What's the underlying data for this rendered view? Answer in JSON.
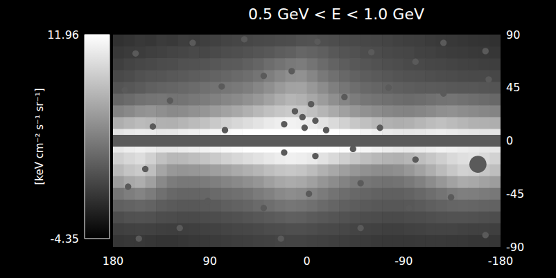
{
  "chart_data": {
    "type": "heatmap",
    "title": "0.5 GeV < E < 1.0 GeV",
    "x": [
      175,
      165,
      155,
      145,
      135,
      125,
      115,
      105,
      95,
      85,
      75,
      65,
      55,
      45,
      35,
      25,
      15,
      5,
      -5,
      -15,
      -25,
      -35,
      -45,
      -55,
      -65,
      -75,
      -85,
      -95,
      -105,
      -115,
      -125,
      -135,
      -145,
      -155,
      -165,
      -175
    ],
    "y": [
      85,
      75,
      65,
      55,
      45,
      35,
      25,
      15,
      5,
      -5,
      -15,
      -25,
      -35,
      -45,
      -55,
      -65,
      -75,
      -85
    ],
    "values": [
      [
        -1.2,
        -1.0,
        -0.8,
        -0.9,
        -0.6,
        -0.7,
        -0.4,
        -0.5,
        -0.3,
        -0.2,
        0.0,
        0.1,
        0.2,
        0.3,
        0.4,
        0.5,
        0.6,
        0.8,
        0.9,
        0.7,
        0.6,
        0.4,
        0.3,
        0.2,
        0.1,
        0.0,
        -0.2,
        -0.3,
        -0.4,
        -0.6,
        -0.7,
        -0.8,
        -0.9,
        -1.0,
        -1.1,
        -1.2
      ],
      [
        -0.8,
        -0.6,
        -0.5,
        -0.3,
        -0.2,
        0.0,
        0.1,
        0.3,
        0.2,
        0.4,
        0.6,
        0.7,
        0.9,
        1.1,
        1.3,
        1.6,
        1.8,
        2.2,
        2.0,
        1.7,
        1.3,
        1.0,
        0.8,
        0.6,
        0.5,
        0.3,
        0.2,
        0.1,
        -0.1,
        -0.2,
        -0.4,
        -0.5,
        -0.6,
        -0.7,
        -0.8,
        -0.9
      ],
      [
        -0.3,
        0.0,
        0.2,
        0.3,
        0.5,
        0.6,
        0.8,
        0.9,
        1.0,
        1.2,
        1.4,
        1.5,
        1.8,
        2.1,
        2.6,
        3.0,
        3.4,
        3.6,
        3.1,
        2.5,
        2.0,
        1.6,
        1.3,
        1.1,
        0.9,
        0.7,
        0.6,
        0.4,
        0.3,
        0.2,
        0.1,
        0.0,
        -0.1,
        -0.2,
        -0.3,
        -0.4
      ],
      [
        0.3,
        0.5,
        0.8,
        1.0,
        1.1,
        1.3,
        1.4,
        1.6,
        1.8,
        2.0,
        2.2,
        2.4,
        2.7,
        3.1,
        3.7,
        4.3,
        4.8,
        4.9,
        4.2,
        3.4,
        2.8,
        2.3,
        1.9,
        1.6,
        1.4,
        1.2,
        1.0,
        0.9,
        0.8,
        0.7,
        0.6,
        0.5,
        0.4,
        0.3,
        0.3,
        0.2
      ],
      [
        1.0,
        1.2,
        1.5,
        1.8,
        2.0,
        2.1,
        2.3,
        2.5,
        2.8,
        3.0,
        3.2,
        3.4,
        3.7,
        4.2,
        4.8,
        5.5,
        6.0,
        6.1,
        5.4,
        4.6,
        3.8,
        3.2,
        2.7,
        2.3,
        2.1,
        1.9,
        1.7,
        1.6,
        1.5,
        1.5,
        1.4,
        1.3,
        1.2,
        1.2,
        1.1,
        1.0
      ],
      [
        2.2,
        2.5,
        2.9,
        3.1,
        3.2,
        3.0,
        3.1,
        3.3,
        3.6,
        3.9,
        4.2,
        4.5,
        4.9,
        5.4,
        6.0,
        6.7,
        7.2,
        7.0,
        6.3,
        5.6,
        4.8,
        4.2,
        3.6,
        3.2,
        3.0,
        2.8,
        2.6,
        2.5,
        2.6,
        2.8,
        3.0,
        3.1,
        2.9,
        2.7,
        2.5,
        2.3
      ],
      [
        4.0,
        4.4,
        4.9,
        5.1,
        4.8,
        4.5,
        4.6,
        4.9,
        5.2,
        5.6,
        6.0,
        6.4,
        6.9,
        7.4,
        7.9,
        8.3,
        8.6,
        8.4,
        7.9,
        7.2,
        6.5,
        5.9,
        5.3,
        4.9,
        4.6,
        4.3,
        4.1,
        4.0,
        4.2,
        4.5,
        4.8,
        4.9,
        4.7,
        4.5,
        4.3,
        4.1
      ],
      [
        6.8,
        7.2,
        7.6,
        7.4,
        7.0,
        6.9,
        7.2,
        7.6,
        8.0,
        8.5,
        9.0,
        9.4,
        9.8,
        10.2,
        10.6,
        10.9,
        11.1,
        11.0,
        10.7,
        10.2,
        9.6,
        9.0,
        8.4,
        7.9,
        7.4,
        7.0,
        6.8,
        6.9,
        7.3,
        7.7,
        7.9,
        7.6,
        7.3,
        7.0,
        6.9,
        6.8
      ],
      [
        10.2,
        10.5,
        10.7,
        10.6,
        10.4,
        10.5,
        10.8,
        11.0,
        11.2,
        11.4,
        11.6,
        11.8,
        11.9,
        11.9,
        11.9,
        11.9,
        11.9,
        11.9,
        11.9,
        11.9,
        11.9,
        11.8,
        11.6,
        11.3,
        11.0,
        10.7,
        10.5,
        10.4,
        10.5,
        10.7,
        10.8,
        10.6,
        10.4,
        10.3,
        10.2,
        10.2
      ],
      [
        10.4,
        10.8,
        11.0,
        10.8,
        10.5,
        10.5,
        10.7,
        10.9,
        11.1,
        11.3,
        11.5,
        11.7,
        11.9,
        11.9,
        11.9,
        11.9,
        11.9,
        11.9,
        11.9,
        11.9,
        11.9,
        11.8,
        11.6,
        11.4,
        11.1,
        10.8,
        10.6,
        10.5,
        10.7,
        10.9,
        11.1,
        11.0,
        10.8,
        10.6,
        10.5,
        10.4
      ],
      [
        8.9,
        9.4,
        9.8,
        9.0,
        8.0,
        7.4,
        7.5,
        7.8,
        8.2,
        8.6,
        9.0,
        9.4,
        9.8,
        10.1,
        10.5,
        10.8,
        11.0,
        10.9,
        10.6,
        10.1,
        9.5,
        8.9,
        8.3,
        7.8,
        7.4,
        7.1,
        7.0,
        7.3,
        7.8,
        8.3,
        8.9,
        9.5,
        9.9,
        10.1,
        9.6,
        9.1
      ],
      [
        7.5,
        8.2,
        8.6,
        7.8,
        6.2,
        5.4,
        5.2,
        5.3,
        5.5,
        5.8,
        6.1,
        6.5,
        6.9,
        7.3,
        7.8,
        8.2,
        8.4,
        8.2,
        7.7,
        7.0,
        6.4,
        5.8,
        5.3,
        4.9,
        4.7,
        4.6,
        4.8,
        5.3,
        6.0,
        6.8,
        7.6,
        8.4,
        9.0,
        8.8,
        8.3,
        7.8
      ],
      [
        5.6,
        6.4,
        6.8,
        5.9,
        4.4,
        3.6,
        3.3,
        3.3,
        3.5,
        3.8,
        4.1,
        4.4,
        4.8,
        5.2,
        5.8,
        6.3,
        6.6,
        6.4,
        5.9,
        5.2,
        4.6,
        4.0,
        3.5,
        3.2,
        3.0,
        2.9,
        3.0,
        3.4,
        3.9,
        4.6,
        5.3,
        6.0,
        6.6,
        6.4,
        6.0,
        5.7
      ],
      [
        3.2,
        3.7,
        4.1,
        3.6,
        2.8,
        2.3,
        2.1,
        2.1,
        2.2,
        2.4,
        2.6,
        2.8,
        3.1,
        3.5,
        3.9,
        4.4,
        4.7,
        4.5,
        4.0,
        3.5,
        3.0,
        2.6,
        2.3,
        2.1,
        1.9,
        1.8,
        1.8,
        2.0,
        2.3,
        2.7,
        3.1,
        3.5,
        3.8,
        3.7,
        3.5,
        3.3
      ],
      [
        1.8,
        2.0,
        2.2,
        2.0,
        1.6,
        1.4,
        1.3,
        1.3,
        1.4,
        1.5,
        1.7,
        1.9,
        2.1,
        2.4,
        2.7,
        3.0,
        3.2,
        3.1,
        2.8,
        2.4,
        2.1,
        1.8,
        1.6,
        1.4,
        1.3,
        1.2,
        1.2,
        1.3,
        1.5,
        1.7,
        1.9,
        2.1,
        2.2,
        2.1,
        2.0,
        1.9
      ],
      [
        0.6,
        0.8,
        0.9,
        0.8,
        0.6,
        0.5,
        0.4,
        0.4,
        0.5,
        0.6,
        0.7,
        0.8,
        1.0,
        1.2,
        1.4,
        1.6,
        1.8,
        1.7,
        1.5,
        1.3,
        1.1,
        0.9,
        0.7,
        0.6,
        0.5,
        0.4,
        0.4,
        0.5,
        0.6,
        0.7,
        0.8,
        0.9,
        0.9,
        0.8,
        0.7,
        0.6
      ],
      [
        -0.3,
        -0.2,
        -0.1,
        -0.2,
        -0.3,
        -0.4,
        -0.4,
        -0.3,
        -0.2,
        -0.1,
        0.0,
        0.1,
        0.2,
        0.3,
        0.5,
        0.6,
        0.7,
        0.7,
        0.6,
        0.4,
        0.3,
        0.2,
        0.0,
        -0.1,
        -0.2,
        -0.3,
        -0.3,
        -0.2,
        -0.1,
        0.0,
        0.0,
        0.0,
        -0.1,
        -0.2,
        -0.2,
        -0.3
      ],
      [
        -0.9,
        -0.8,
        -0.8,
        -0.9,
        -1.0,
        -1.0,
        -0.9,
        -0.8,
        -0.7,
        -0.6,
        -0.5,
        -0.4,
        -0.3,
        -0.2,
        -0.1,
        0.0,
        0.0,
        0.0,
        -0.1,
        -0.2,
        -0.3,
        -0.4,
        -0.5,
        -0.6,
        -0.7,
        -0.8,
        -0.8,
        -0.8,
        -0.7,
        -0.7,
        -0.7,
        -0.8,
        -0.8,
        -0.9,
        -0.9,
        -0.9
      ]
    ],
    "xlim": [
      180,
      -180
    ],
    "xticks": [
      180,
      90,
      0,
      -90,
      -180
    ],
    "ylim": [
      -90,
      90
    ],
    "yticks": [
      -90,
      -45,
      0,
      45,
      90
    ],
    "colorbar": {
      "label": "[keV cm⁻² s⁻¹ sr⁻¹]",
      "range": [
        -4.35,
        11.96
      ],
      "ticks": [
        -4.35,
        11.96
      ]
    },
    "masks": {
      "band": [
        -5,
        5
      ],
      "sources": [
        {
          "lon": 159,
          "lat": 74,
          "r": 3
        },
        {
          "lon": 106,
          "lat": 83,
          "r": 3
        },
        {
          "lon": 58,
          "lat": 86,
          "r": 3
        },
        {
          "lon": -10,
          "lat": 84,
          "r": 3
        },
        {
          "lon": -60,
          "lat": 75,
          "r": 3
        },
        {
          "lon": -101,
          "lat": 67,
          "r": 3
        },
        {
          "lon": -127,
          "lat": 83,
          "r": 3
        },
        {
          "lon": -166,
          "lat": 76,
          "r": 3
        },
        {
          "lon": 169,
          "lat": 43,
          "r": 3
        },
        {
          "lon": 127,
          "lat": 34,
          "r": 3
        },
        {
          "lon": 79,
          "lat": 46,
          "r": 3
        },
        {
          "lon": 40,
          "lat": 55,
          "r": 3
        },
        {
          "lon": 14,
          "lat": 59,
          "r": 3
        },
        {
          "lon": -35,
          "lat": 37,
          "r": 3
        },
        {
          "lon": -76,
          "lat": 45,
          "r": 3
        },
        {
          "lon": -127,
          "lat": 40,
          "r": 3
        },
        {
          "lon": -169,
          "lat": 52,
          "r": 3
        },
        {
          "lon": 11,
          "lat": 25,
          "r": 3
        },
        {
          "lon": 4,
          "lat": 20,
          "r": 3
        },
        {
          "lon": -4,
          "lat": 31,
          "r": 3
        },
        {
          "lon": -8,
          "lat": 17,
          "r": 3
        },
        {
          "lon": 2,
          "lat": 11,
          "r": 3
        },
        {
          "lon": 21,
          "lat": 14,
          "r": 3
        },
        {
          "lon": -18,
          "lat": 9,
          "r": 3
        },
        {
          "lon": 76,
          "lat": 9,
          "r": 3
        },
        {
          "lon": 143,
          "lat": 12,
          "r": 3
        },
        {
          "lon": -68,
          "lat": 11,
          "r": 3
        },
        {
          "lon": 21,
          "lat": -10,
          "r": 3
        },
        {
          "lon": -8,
          "lat": -13,
          "r": 3
        },
        {
          "lon": -43,
          "lat": -7,
          "r": 3
        },
        {
          "lon": -101,
          "lat": -16,
          "r": 3
        },
        {
          "lon": 150,
          "lat": -24,
          "r": 3
        },
        {
          "lon": -159,
          "lat": -20,
          "r": 8
        },
        {
          "lon": 166,
          "lat": -39,
          "r": 3
        },
        {
          "lon": 92,
          "lat": -51,
          "r": 3
        },
        {
          "lon": 40,
          "lat": -57,
          "r": 3
        },
        {
          "lon": -2,
          "lat": -45,
          "r": 3
        },
        {
          "lon": -50,
          "lat": -36,
          "r": 3
        },
        {
          "lon": -95,
          "lat": -57,
          "r": 3
        },
        {
          "lon": -134,
          "lat": -48,
          "r": 3
        },
        {
          "lon": 118,
          "lat": -74,
          "r": 3
        },
        {
          "lon": -50,
          "lat": -74,
          "r": 3
        },
        {
          "lon": 24,
          "lat": -83,
          "r": 3
        },
        {
          "lon": -166,
          "lat": -80,
          "r": 3
        },
        {
          "lon": 156,
          "lat": -83,
          "r": 3
        }
      ]
    }
  }
}
